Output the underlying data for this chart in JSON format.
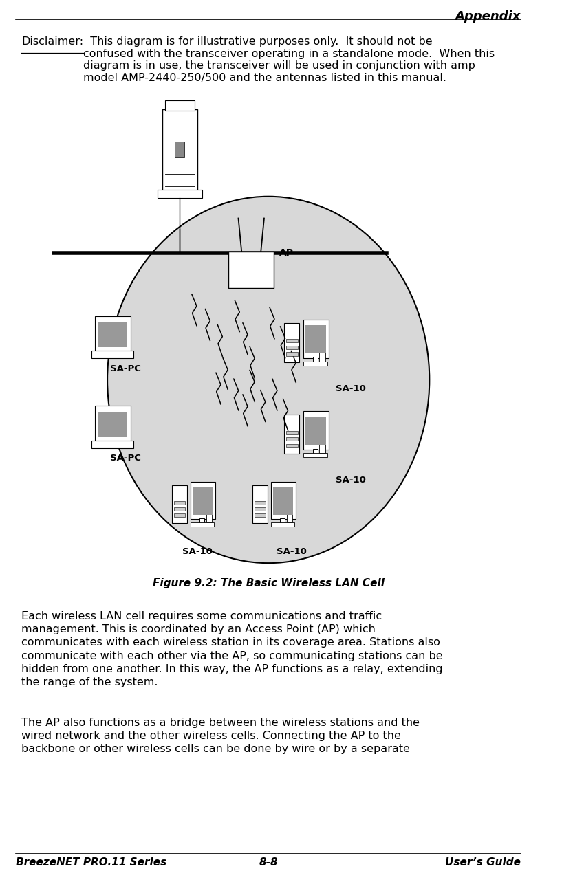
{
  "page_bg": "#ffffff",
  "header_text": "Appendix",
  "footer_left": "BreezeNET PRO.11 Series",
  "footer_center": "8-8",
  "footer_right": "User’s Guide",
  "disclaimer_label": "Disclaimer:",
  "disclaimer_body": "  This diagram is for illustrative purposes only.  It should not be\nconfused with the transceiver operating in a standalone mode.  When this\ndiagram is in use, the transceiver will be used in conjunction with amp\nmodel AMP-2440-250/500 and the antennas listed in this manual.",
  "figure_caption": "Figure 9.2: The Basic Wireless LAN Cell",
  "body_para1": "Each wireless LAN cell requires some communications and traffic\nmanagement. This is coordinated by an Access Point (AP) which\ncommunicates with each wireless station in its coverage area. Stations also\ncommunicate with each other via the AP, so communicating stations can be\nhidden from one another. In this way, the AP functions as a relay, extending\nthe range of the system.",
  "body_para2": "The AP also functions as a bridge between the wireless stations and the\nwired network and the other wireless cells. Connecting the AP to the\nbackbone or other wireless cells can be done by wire or by a separate",
  "circle_color": "#d8d8d8",
  "text_color": "#000000",
  "main_font_size": 11.5,
  "footer_font_size": 11,
  "header_font_size": 13
}
